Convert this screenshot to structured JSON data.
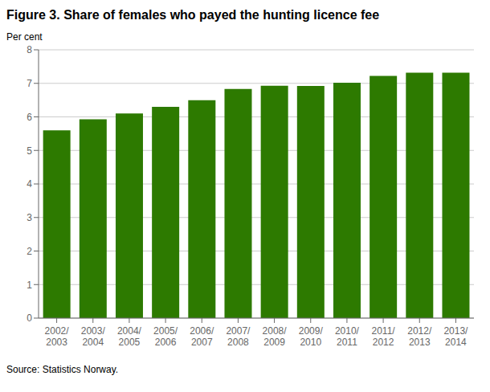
{
  "chart_data": {
    "type": "bar",
    "title": "Figure 3. Share of females who payed the hunting licence fee",
    "ylabel": "Per cent",
    "source": "Source: Statistics Norway.",
    "categories": [
      "2002/\n2003",
      "2003/\n2004",
      "2004/\n2005",
      "2005/\n2006",
      "2006/\n2007",
      "2007/\n2008",
      "2008/\n2009",
      "2009/\n2010",
      "2010/\n2011",
      "2011/\n2012",
      "2012/\n2013",
      "2013/\n2014"
    ],
    "values": [
      5.6,
      5.93,
      6.1,
      6.3,
      6.5,
      6.83,
      6.93,
      6.92,
      7.02,
      7.22,
      7.32,
      7.32
    ],
    "color": "#2d7a00",
    "ylim": [
      0,
      8
    ],
    "yticks": [
      0,
      1,
      2,
      3,
      4,
      5,
      6,
      7,
      8
    ],
    "grid": true
  }
}
